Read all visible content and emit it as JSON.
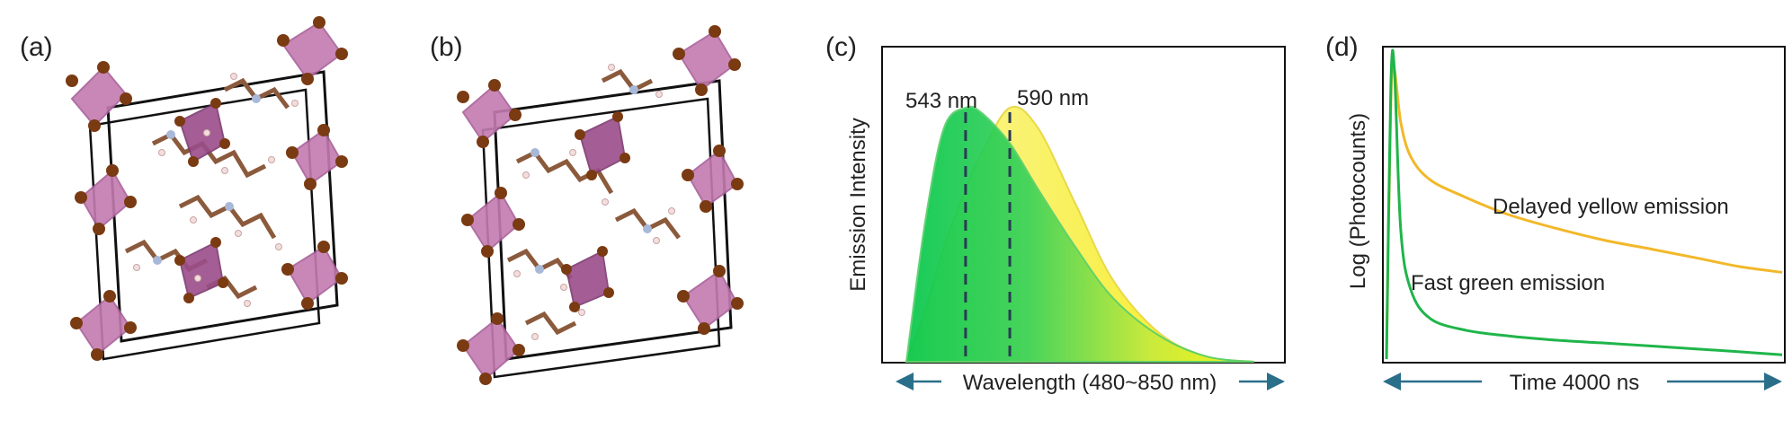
{
  "panels": {
    "a": {
      "label": "(a)"
    },
    "b": {
      "label": "(b)"
    },
    "c": {
      "label": "(c)",
      "ylabel": "Emission Intensity",
      "xlabel": "Wavelength (480~850  nm)",
      "peak1": "543 nm",
      "peak2": "590 nm"
    },
    "d": {
      "label": "(d)",
      "ylabel": "Log (Photocounts)",
      "xlabel": "Time 4000 ns",
      "yellow_label": "Delayed yellow emission",
      "green_label": "Fast green emission"
    }
  },
  "colors": {
    "octahedra": "#c47bb0",
    "bromine": "#7a3a12",
    "carbon": "#8b5a3c",
    "nitrogen": "#a8b8d8",
    "hydrogen": "#f0d8d8",
    "green": "#1fb54a",
    "yellow": "#f2b829",
    "arrow": "#2a6f8a"
  },
  "chart_data": [
    {
      "type": "area",
      "title": "",
      "xlabel": "Wavelength (480~850  nm)",
      "ylabel": "Emission Intensity",
      "xlim": [
        480,
        850
      ],
      "ylim": [
        0,
        1.05
      ],
      "annotations": [
        "543 nm",
        "590 nm"
      ],
      "peaks": [
        543,
        590
      ],
      "series": [
        {
          "name": "green emission",
          "x": [
            480,
            500,
            520,
            543,
            560,
            590,
            620,
            660,
            700,
            750,
            800,
            850
          ],
          "values": [
            0,
            0.55,
            0.92,
            1.0,
            0.98,
            0.86,
            0.68,
            0.45,
            0.25,
            0.1,
            0.02,
            0
          ]
        },
        {
          "name": "yellow emission",
          "x": [
            480,
            500,
            520,
            543,
            560,
            590,
            620,
            660,
            700,
            750,
            800,
            850
          ],
          "values": [
            0,
            0.2,
            0.45,
            0.68,
            0.82,
            1.0,
            0.92,
            0.62,
            0.32,
            0.11,
            0.02,
            0
          ]
        }
      ]
    },
    {
      "type": "line",
      "title": "",
      "xlabel": "Time 4000 ns",
      "ylabel": "Log (Photocounts)",
      "xlim": [
        0,
        4000
      ],
      "ylim": [
        0,
        1.05
      ],
      "series": [
        {
          "name": "Delayed yellow emission",
          "x": [
            0,
            20,
            40,
            80,
            150,
            300,
            600,
            1000,
            1500,
            2000,
            2500,
            3000,
            3500,
            4000
          ],
          "values": [
            0,
            0.9,
            1.0,
            0.82,
            0.7,
            0.62,
            0.56,
            0.5,
            0.45,
            0.41,
            0.38,
            0.35,
            0.32,
            0.3
          ]
        },
        {
          "name": "Fast green emission",
          "x": [
            0,
            20,
            40,
            80,
            150,
            300,
            600,
            1000,
            1500,
            2000,
            2500,
            3000,
            3500,
            4000
          ],
          "values": [
            0,
            0.95,
            1.0,
            0.45,
            0.24,
            0.14,
            0.1,
            0.08,
            0.065,
            0.055,
            0.045,
            0.035,
            0.025,
            0.015
          ]
        }
      ]
    }
  ]
}
